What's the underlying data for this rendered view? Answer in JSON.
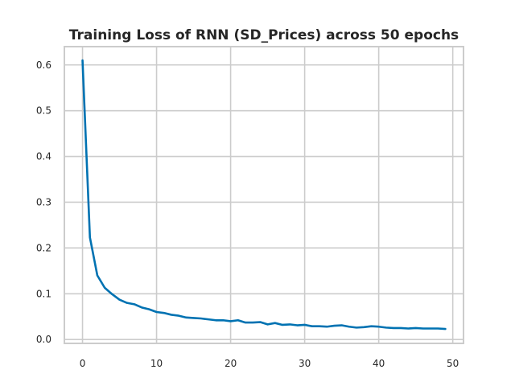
{
  "chart_data": {
    "type": "line",
    "title": "Training Loss of RNN (SD_Prices) across 50 epochs",
    "xlabel": "",
    "ylabel": "",
    "xlim": [
      -2.45,
      51.45
    ],
    "ylim": [
      -0.0085,
      0.64
    ],
    "x_ticks": [
      0,
      10,
      20,
      30,
      40,
      50
    ],
    "y_ticks": [
      0.0,
      0.1,
      0.2,
      0.3,
      0.4,
      0.5,
      0.6
    ],
    "x_tick_labels": [
      "0",
      "10",
      "20",
      "30",
      "40",
      "50"
    ],
    "y_tick_labels": [
      "0.0",
      "0.1",
      "0.2",
      "0.3",
      "0.4",
      "0.5",
      "0.6"
    ],
    "grid": true,
    "legend": "none",
    "colors": {
      "line": "#0072b2",
      "grid": "#cccccc",
      "spine": "#cccccc",
      "text": "#262626"
    },
    "series": [
      {
        "x": [
          0,
          1,
          2,
          3,
          4,
          5,
          6,
          7,
          8,
          9,
          10,
          11,
          12,
          13,
          14,
          15,
          16,
          17,
          18,
          19,
          20,
          21,
          22,
          23,
          24,
          25,
          26,
          27,
          28,
          29,
          30,
          31,
          32,
          33,
          34,
          35,
          36,
          37,
          38,
          39,
          40,
          41,
          42,
          43,
          44,
          45,
          46,
          47,
          48,
          49
        ],
        "values": [
          0.61,
          0.223,
          0.14,
          0.113,
          0.099,
          0.087,
          0.08,
          0.077,
          0.07,
          0.066,
          0.06,
          0.058,
          0.054,
          0.052,
          0.048,
          0.047,
          0.046,
          0.044,
          0.042,
          0.042,
          0.04,
          0.042,
          0.037,
          0.037,
          0.038,
          0.033,
          0.036,
          0.032,
          0.033,
          0.031,
          0.032,
          0.029,
          0.029,
          0.028,
          0.03,
          0.031,
          0.028,
          0.026,
          0.027,
          0.029,
          0.028,
          0.026,
          0.025,
          0.025,
          0.024,
          0.025,
          0.024,
          0.024,
          0.024,
          0.023
        ]
      }
    ]
  }
}
